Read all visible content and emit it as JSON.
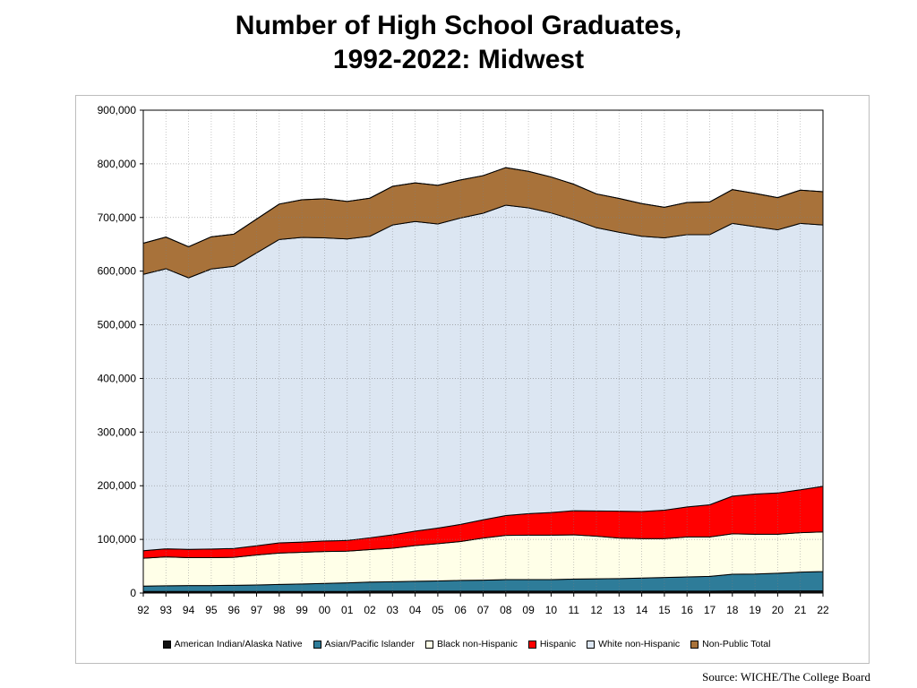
{
  "title": {
    "line1": "Number of High School Graduates,",
    "line2": "1992-2022:  Midwest"
  },
  "source": "Source: WICHE/The College Board",
  "chart_data": {
    "type": "area",
    "stacked": true,
    "categories": [
      "92",
      "93",
      "94",
      "95",
      "96",
      "97",
      "98",
      "99",
      "00",
      "01",
      "02",
      "03",
      "04",
      "05",
      "06",
      "07",
      "08",
      "09",
      "10",
      "11",
      "12",
      "13",
      "14",
      "15",
      "16",
      "17",
      "18",
      "19",
      "20",
      "21",
      "22"
    ],
    "ylim": [
      0,
      900000
    ],
    "yticks": [
      0,
      100000,
      200000,
      300000,
      400000,
      500000,
      600000,
      700000,
      800000,
      900000
    ],
    "ytick_labels": [
      "0",
      "100,000",
      "200,000",
      "300,000",
      "400,000",
      "500,000",
      "600,000",
      "700,000",
      "800,000",
      "900,000"
    ],
    "grid": true,
    "legend_position": "bottom",
    "series": [
      {
        "name": "American Indian/Alaska  Native",
        "color": "#111111",
        "values": [
          3000,
          3000,
          3000,
          3000,
          3000,
          3000,
          3000,
          3000,
          3000,
          3000,
          3500,
          3500,
          3500,
          3500,
          3500,
          3500,
          3500,
          3500,
          3500,
          3500,
          3500,
          3500,
          3500,
          3500,
          3500,
          3500,
          4000,
          4000,
          4000,
          4000,
          4000
        ]
      },
      {
        "name": "Asian/Pacific Islander",
        "color": "#2e7c99",
        "values": [
          10000,
          10500,
          11000,
          11000,
          11500,
          12000,
          13000,
          14000,
          15000,
          16000,
          17000,
          17500,
          18500,
          19000,
          20000,
          20500,
          21500,
          21500,
          21500,
          22500,
          23000,
          23500,
          24500,
          25500,
          26500,
          27500,
          31000,
          31500,
          33000,
          35000,
          36000
        ]
      },
      {
        "name": "Black non-Hispanic",
        "color": "#ffffe8",
        "values": [
          52000,
          54000,
          52000,
          52000,
          52000,
          56000,
          58500,
          59000,
          59500,
          59000,
          60500,
          62500,
          66500,
          69500,
          72500,
          78500,
          82500,
          83000,
          83000,
          82500,
          79500,
          75500,
          73500,
          72500,
          74500,
          73500,
          75500,
          74000,
          72500,
          73500,
          74000
        ]
      },
      {
        "name": "Hispanic",
        "color": "#ff0000",
        "values": [
          14000,
          15000,
          15500,
          16000,
          16500,
          17000,
          19000,
          19000,
          19500,
          20000,
          22000,
          25000,
          27000,
          29000,
          32000,
          34000,
          37000,
          40000,
          42000,
          45000,
          47000,
          50000,
          50500,
          53000,
          56000,
          60000,
          70000,
          75000,
          77000,
          80000,
          85000
        ]
      },
      {
        "name": "White non-Hispanic",
        "color": "#dce6f2",
        "values": [
          515000,
          522000,
          506000,
          522000,
          526000,
          546000,
          565500,
          568000,
          565000,
          562000,
          562000,
          577500,
          577000,
          567000,
          571000,
          571500,
          578500,
          570000,
          558500,
          542500,
          528000,
          520000,
          513000,
          507500,
          507500,
          503500,
          508500,
          498500,
          490500,
          496500,
          487000
        ]
      },
      {
        "name": "Non-Public Total",
        "color": "#a8723a",
        "values": [
          58000,
          59000,
          58000,
          60000,
          60000,
          63000,
          66000,
          70000,
          73000,
          70000,
          71000,
          72000,
          72000,
          72000,
          71000,
          70000,
          70000,
          68000,
          67000,
          66000,
          63000,
          63000,
          61000,
          57000,
          60000,
          61000,
          63000,
          62000,
          60000,
          62000,
          62000
        ]
      }
    ]
  }
}
